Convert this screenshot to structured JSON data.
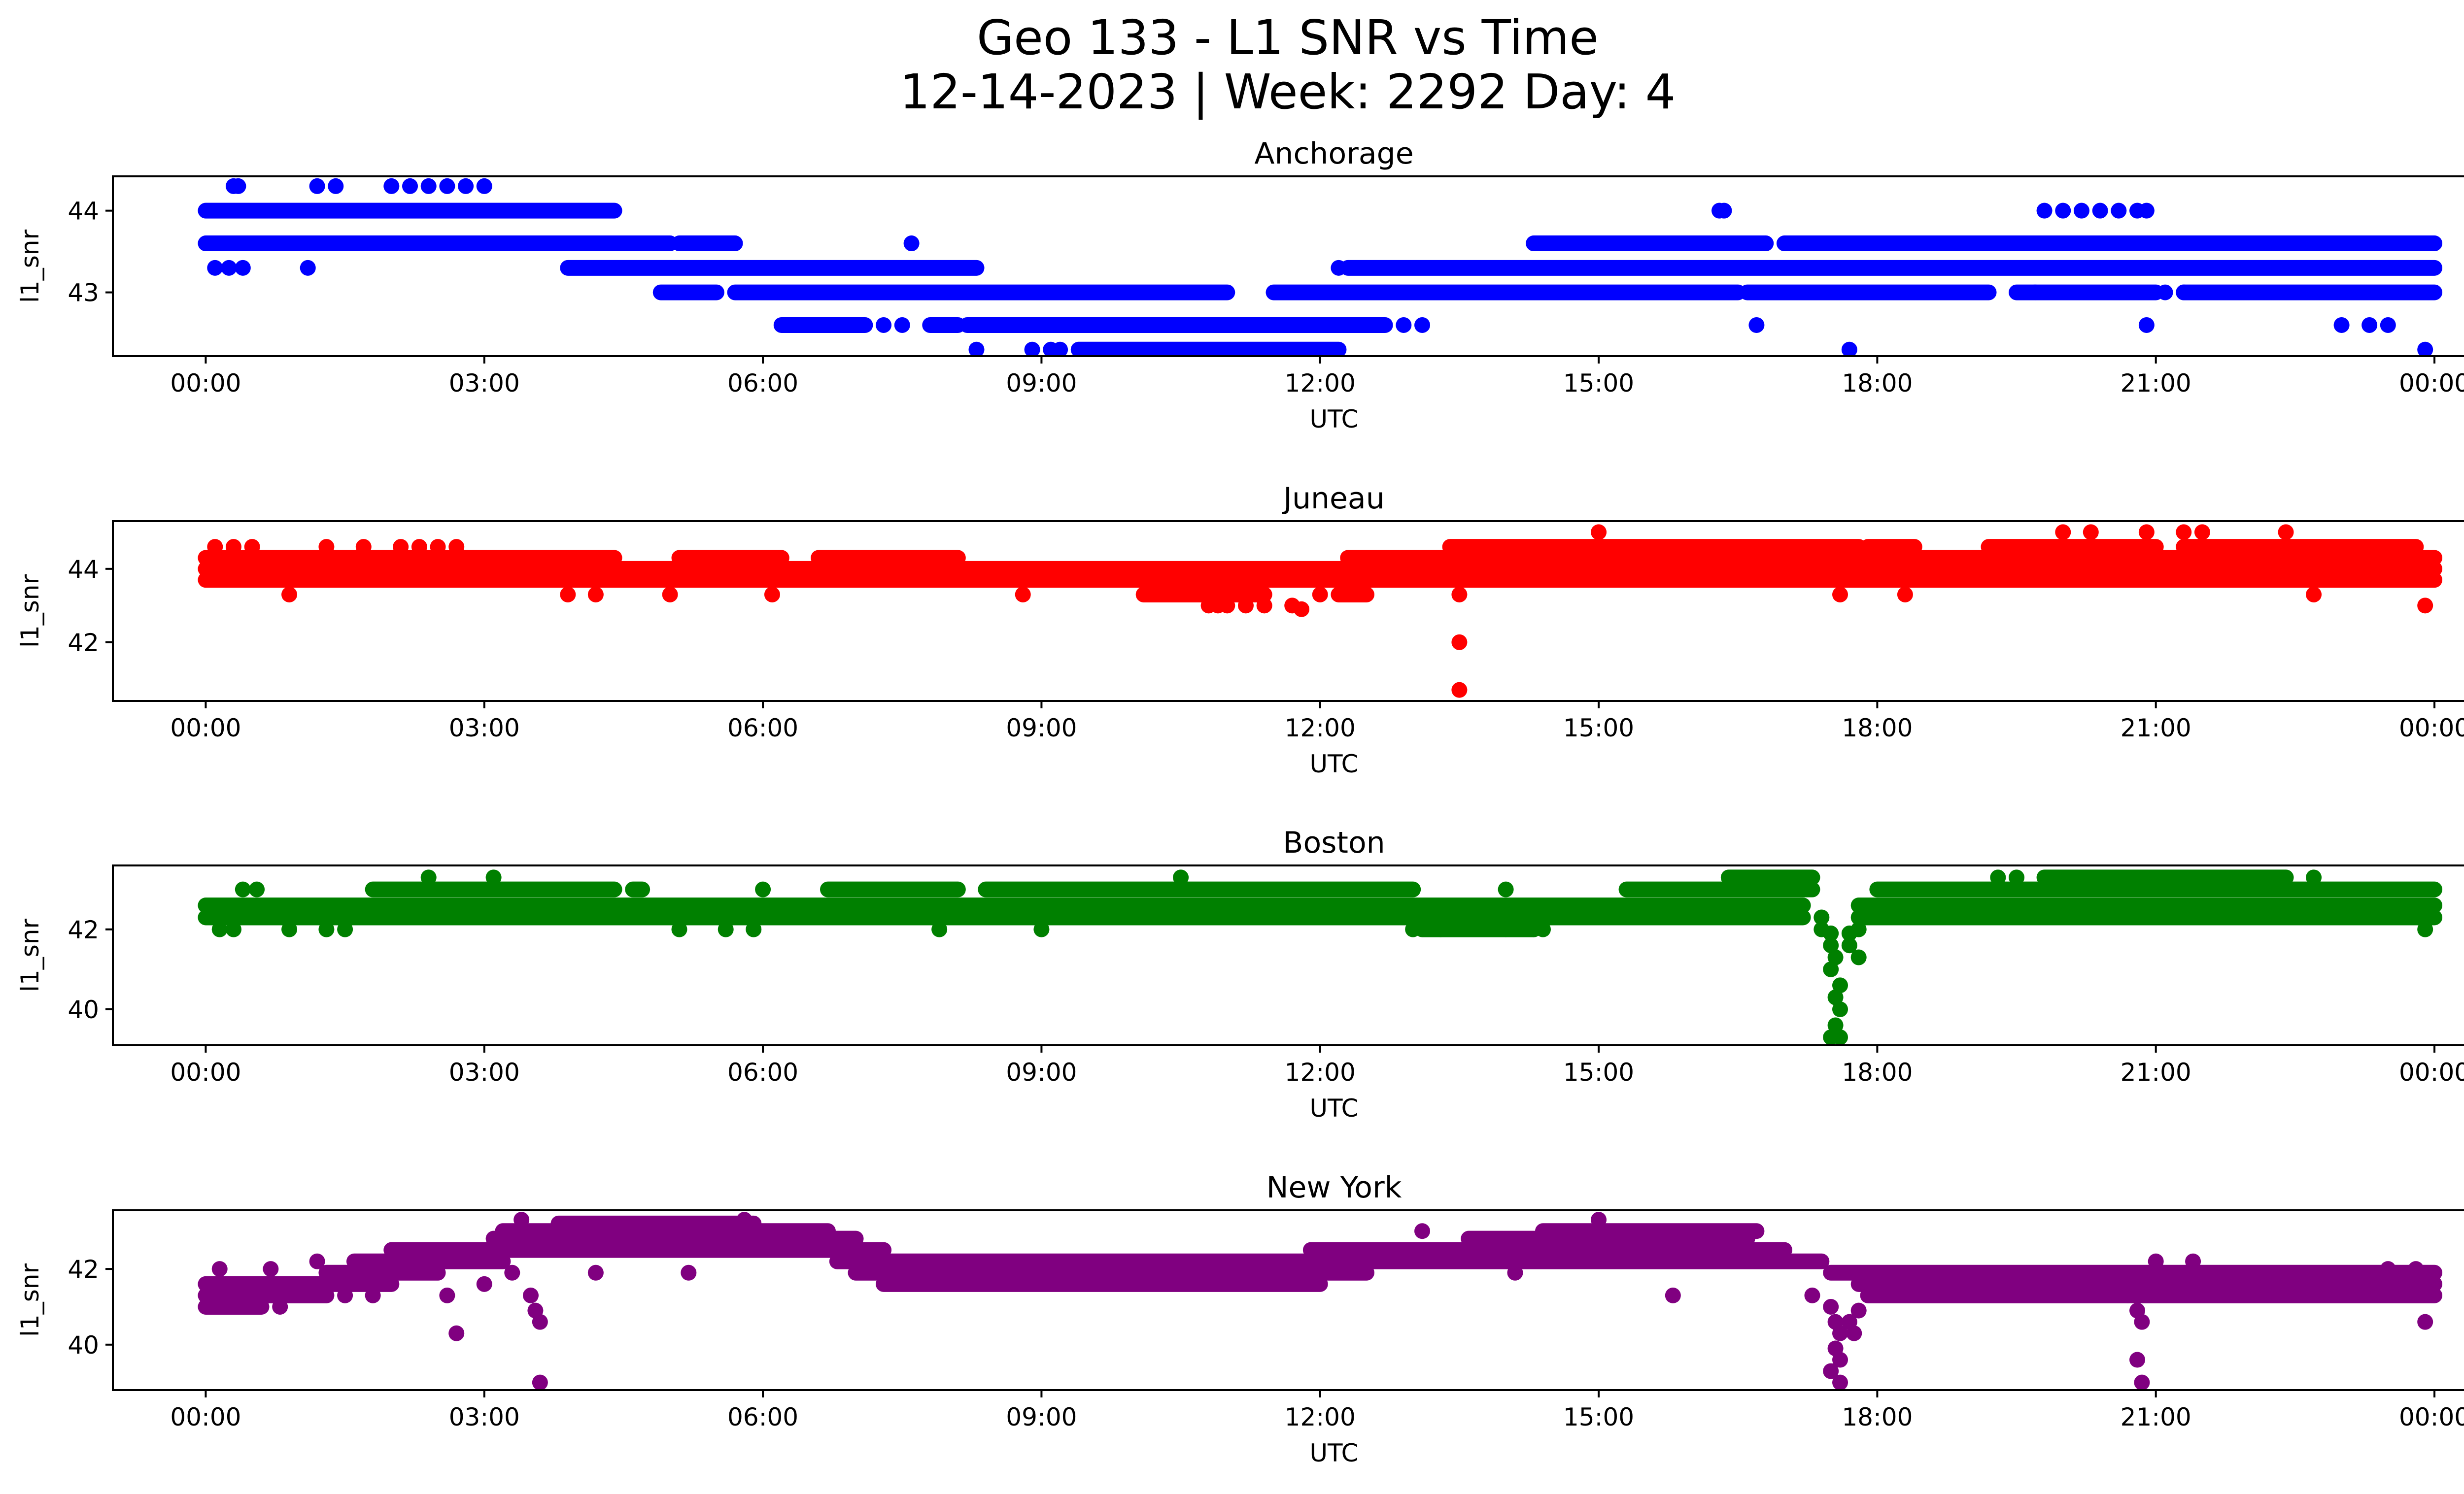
{
  "figure": {
    "title_line1": "Geo 133 - L1 SNR vs Time",
    "title_line2": "12-14-2023 | Week: 2292 Day: 4"
  },
  "chart_data": [
    {
      "type": "scatter",
      "title": "Anchorage",
      "xlabel": "UTC",
      "ylabel": "l1_snr",
      "color": "#0000ff",
      "xlim_hours": [
        -1.0,
        25.3
      ],
      "ylim": [
        42.22,
        44.42
      ],
      "x_ticks": [
        "00:00",
        "03:00",
        "06:00",
        "09:00",
        "12:00",
        "15:00",
        "18:00",
        "21:00",
        "00:00"
      ],
      "x_tick_hours": [
        0,
        3,
        6,
        9,
        12,
        15,
        18,
        21,
        24
      ],
      "y_ticks": [
        43,
        44
      ],
      "segments": [
        {
          "y": 44.0,
          "ranges": [
            [
              0.0,
              4.4
            ]
          ]
        },
        {
          "y": 43.6,
          "ranges": [
            [
              0.0,
              5.0
            ],
            [
              5.1,
              5.7
            ],
            [
              14.3,
              16.8
            ],
            [
              17.0,
              24.0
            ]
          ]
        },
        {
          "y": 43.3,
          "ranges": [
            [
              3.9,
              8.3
            ],
            [
              12.3,
              24.0
            ]
          ]
        },
        {
          "y": 43.0,
          "ranges": [
            [
              4.9,
              5.5
            ],
            [
              5.7,
              11.0
            ],
            [
              11.5,
              16.5
            ],
            [
              16.6,
              19.2
            ],
            [
              19.5,
              21.0
            ],
            [
              21.3,
              24.0
            ]
          ]
        },
        {
          "y": 42.6,
          "ranges": [
            [
              6.2,
              7.1
            ],
            [
              7.8,
              8.1
            ],
            [
              8.2,
              12.7
            ]
          ]
        },
        {
          "y": 42.3,
          "ranges": [
            [
              9.4,
              12.2
            ]
          ]
        }
      ],
      "points": [
        [
          0.1,
          43.3
        ],
        [
          0.25,
          43.3
        ],
        [
          0.4,
          43.3
        ],
        [
          1.1,
          43.3
        ],
        [
          0.3,
          44.3
        ],
        [
          0.35,
          44.3
        ],
        [
          1.2,
          44.3
        ],
        [
          1.4,
          44.3
        ],
        [
          2.0,
          44.3
        ],
        [
          2.2,
          44.3
        ],
        [
          2.4,
          44.3
        ],
        [
          2.6,
          44.3
        ],
        [
          2.8,
          44.3
        ],
        [
          3.0,
          44.3
        ],
        [
          7.6,
          43.6
        ],
        [
          8.3,
          42.3
        ],
        [
          8.9,
          42.3
        ],
        [
          9.1,
          42.3
        ],
        [
          9.2,
          42.3
        ],
        [
          6.6,
          42.6
        ],
        [
          7.3,
          42.6
        ],
        [
          7.5,
          42.6
        ],
        [
          12.9,
          42.6
        ],
        [
          13.1,
          42.6
        ],
        [
          12.2,
          43.3
        ],
        [
          16.3,
          44.0
        ],
        [
          16.35,
          44.0
        ],
        [
          16.7,
          42.6
        ],
        [
          17.7,
          42.3
        ],
        [
          19.8,
          44.0
        ],
        [
          20.0,
          44.0
        ],
        [
          20.2,
          44.0
        ],
        [
          20.4,
          44.0
        ],
        [
          20.6,
          44.0
        ],
        [
          20.8,
          44.0
        ],
        [
          20.9,
          44.0
        ],
        [
          20.9,
          42.6
        ],
        [
          23.0,
          42.6
        ],
        [
          23.3,
          42.6
        ],
        [
          23.5,
          42.6
        ],
        [
          23.9,
          42.3
        ],
        [
          19.7,
          43.0
        ],
        [
          21.1,
          43.0
        ],
        [
          21.3,
          43.0
        ],
        [
          22.9,
          43.6
        ],
        [
          23.2,
          43.6
        ],
        [
          23.5,
          43.6
        ]
      ]
    },
    {
      "type": "scatter",
      "title": "Juneau",
      "xlabel": "UTC",
      "ylabel": "l1_snr",
      "color": "#ff0000",
      "xlim_hours": [
        -1.0,
        25.3
      ],
      "ylim": [
        40.4,
        45.3
      ],
      "x_ticks": [
        "00:00",
        "03:00",
        "06:00",
        "09:00",
        "12:00",
        "15:00",
        "18:00",
        "21:00",
        "00:00"
      ],
      "x_tick_hours": [
        0,
        3,
        6,
        9,
        12,
        15,
        18,
        21,
        24
      ],
      "y_ticks": [
        42,
        44
      ],
      "segments": [
        {
          "y": 44.3,
          "ranges": [
            [
              0.0,
              4.4
            ],
            [
              5.1,
              6.2
            ],
            [
              6.6,
              8.1
            ],
            [
              12.3,
              24.0
            ]
          ]
        },
        {
          "y": 44.0,
          "ranges": [
            [
              0.0,
              24.0
            ]
          ]
        },
        {
          "y": 43.7,
          "ranges": [
            [
              0.0,
              24.0
            ]
          ]
        },
        {
          "y": 44.6,
          "ranges": [
            [
              13.4,
              17.8
            ],
            [
              17.9,
              18.4
            ],
            [
              19.2,
              21.0
            ],
            [
              21.3,
              23.8
            ]
          ]
        },
        {
          "y": 43.3,
          "ranges": [
            [
              10.1,
              11.4
            ],
            [
              12.2,
              12.5
            ]
          ]
        }
      ],
      "points": [
        [
          0.1,
          44.6
        ],
        [
          0.3,
          44.6
        ],
        [
          0.5,
          44.6
        ],
        [
          0.9,
          43.3
        ],
        [
          1.3,
          44.6
        ],
        [
          1.7,
          44.6
        ],
        [
          2.1,
          44.6
        ],
        [
          2.3,
          44.6
        ],
        [
          2.5,
          44.6
        ],
        [
          2.7,
          44.6
        ],
        [
          3.9,
          43.3
        ],
        [
          4.2,
          43.3
        ],
        [
          5.0,
          43.3
        ],
        [
          6.1,
          43.3
        ],
        [
          8.8,
          43.3
        ],
        [
          10.5,
          43.3
        ],
        [
          10.8,
          43.0
        ],
        [
          10.9,
          43.0
        ],
        [
          11.0,
          43.0
        ],
        [
          11.2,
          43.0
        ],
        [
          11.4,
          43.0
        ],
        [
          11.7,
          43.0
        ],
        [
          11.8,
          42.9
        ],
        [
          12.0,
          43.3
        ],
        [
          13.5,
          43.3
        ],
        [
          13.5,
          42.0
        ],
        [
          13.5,
          40.7
        ],
        [
          15.0,
          45.0
        ],
        [
          20.0,
          45.0
        ],
        [
          20.3,
          45.0
        ],
        [
          20.9,
          45.0
        ],
        [
          21.3,
          45.0
        ],
        [
          21.5,
          45.0
        ],
        [
          22.4,
          45.0
        ],
        [
          23.9,
          43.0
        ],
        [
          18.3,
          43.3
        ],
        [
          17.6,
          43.3
        ],
        [
          22.7,
          43.3
        ]
      ]
    },
    {
      "type": "scatter",
      "title": "Boston",
      "xlabel": "UTC",
      "ylabel": "l1_snr",
      "color": "#008000",
      "xlim_hours": [
        -1.0,
        25.3
      ],
      "ylim": [
        39.1,
        43.6
      ],
      "x_ticks": [
        "00:00",
        "03:00",
        "06:00",
        "09:00",
        "12:00",
        "15:00",
        "18:00",
        "21:00",
        "00:00"
      ],
      "x_tick_hours": [
        0,
        3,
        6,
        9,
        12,
        15,
        18,
        21,
        24
      ],
      "y_ticks": [
        40,
        42
      ],
      "segments": [
        {
          "y": 42.6,
          "ranges": [
            [
              0.0,
              17.2
            ],
            [
              17.8,
              24.0
            ]
          ]
        },
        {
          "y": 42.3,
          "ranges": [
            [
              0.0,
              17.2
            ],
            [
              17.8,
              24.0
            ]
          ]
        },
        {
          "y": 43.0,
          "ranges": [
            [
              1.8,
              4.4
            ],
            [
              4.6,
              4.7
            ],
            [
              6.7,
              8.1
            ],
            [
              8.4,
              13.0
            ],
            [
              15.3,
              17.3
            ],
            [
              18.0,
              24.0
            ]
          ]
        },
        {
          "y": 42.0,
          "ranges": [
            [
              13.1,
              14.3
            ]
          ]
        },
        {
          "y": 43.3,
          "ranges": [
            [
              16.4,
              17.3
            ],
            [
              19.8,
              22.4
            ]
          ]
        }
      ],
      "points": [
        [
          0.4,
          43.0
        ],
        [
          0.55,
          43.0
        ],
        [
          0.15,
          42.0
        ],
        [
          0.3,
          42.0
        ],
        [
          0.9,
          42.0
        ],
        [
          1.3,
          42.0
        ],
        [
          1.5,
          42.0
        ],
        [
          2.4,
          43.3
        ],
        [
          3.1,
          43.3
        ],
        [
          5.1,
          42.0
        ],
        [
          5.6,
          42.0
        ],
        [
          5.9,
          42.0
        ],
        [
          6.0,
          43.0
        ],
        [
          7.9,
          42.0
        ],
        [
          9.0,
          42.0
        ],
        [
          10.5,
          43.3
        ],
        [
          13.0,
          42.0
        ],
        [
          13.3,
          42.0
        ],
        [
          14.0,
          42.0
        ],
        [
          14.3,
          42.0
        ],
        [
          14.4,
          42.0
        ],
        [
          14.0,
          43.0
        ],
        [
          17.5,
          41.9
        ],
        [
          17.5,
          41.6
        ],
        [
          17.55,
          41.3
        ],
        [
          17.5,
          41.0
        ],
        [
          17.6,
          40.6
        ],
        [
          17.55,
          40.3
        ],
        [
          17.6,
          40.0
        ],
        [
          17.55,
          39.6
        ],
        [
          17.5,
          39.3
        ],
        [
          17.6,
          39.3
        ],
        [
          17.7,
          41.6
        ],
        [
          17.7,
          41.9
        ],
        [
          17.8,
          41.3
        ],
        [
          17.8,
          42.0
        ],
        [
          17.4,
          42.3
        ],
        [
          17.4,
          42.0
        ],
        [
          23.9,
          42.0
        ],
        [
          22.7,
          43.3
        ],
        [
          19.3,
          43.3
        ],
        [
          19.5,
          43.3
        ]
      ]
    },
    {
      "type": "scatter",
      "title": "New York",
      "xlabel": "UTC",
      "ylabel": "l1_snr",
      "color": "#800080",
      "xlim_hours": [
        -1.0,
        25.3
      ],
      "ylim": [
        38.8,
        43.55
      ],
      "x_ticks": [
        "00:00",
        "03:00",
        "06:00",
        "09:00",
        "12:00",
        "15:00",
        "18:00",
        "21:00",
        "00:00"
      ],
      "x_tick_hours": [
        0,
        3,
        6,
        9,
        12,
        15,
        18,
        21,
        24
      ],
      "y_ticks": [
        40,
        42
      ],
      "segments": [
        {
          "y": 41.0,
          "ranges": [
            [
              0.0,
              0.6
            ]
          ]
        },
        {
          "y": 41.3,
          "ranges": [
            [
              0.0,
              1.3
            ]
          ]
        },
        {
          "y": 41.6,
          "ranges": [
            [
              0.0,
              2.0
            ],
            [
              7.3,
              12.0
            ],
            [
              17.8,
              24.0
            ]
          ]
        },
        {
          "y": 41.9,
          "ranges": [
            [
              1.3,
              2.5
            ],
            [
              7.0,
              12.5
            ],
            [
              17.5,
              24.0
            ]
          ]
        },
        {
          "y": 42.2,
          "ranges": [
            [
              1.6,
              3.2
            ],
            [
              6.8,
              17.4
            ]
          ]
        },
        {
          "y": 42.5,
          "ranges": [
            [
              2.0,
              7.3
            ],
            [
              11.9,
              17.0
            ]
          ]
        },
        {
          "y": 42.8,
          "ranges": [
            [
              3.1,
              7.0
            ],
            [
              13.6,
              16.6
            ]
          ]
        },
        {
          "y": 43.0,
          "ranges": [
            [
              3.2,
              6.7
            ],
            [
              14.4,
              16.7
            ]
          ]
        },
        {
          "y": 43.2,
          "ranges": [
            [
              3.8,
              5.9
            ]
          ]
        },
        {
          "y": 41.3,
          "ranges": [
            [
              17.9,
              24.0
            ]
          ]
        }
      ],
      "points": [
        [
          0.15,
          42.0
        ],
        [
          0.7,
          42.0
        ],
        [
          0.8,
          41.0
        ],
        [
          1.2,
          42.2
        ],
        [
          1.5,
          41.3
        ],
        [
          1.8,
          41.3
        ],
        [
          2.6,
          41.3
        ],
        [
          2.7,
          40.3
        ],
        [
          3.0,
          41.6
        ],
        [
          3.3,
          41.9
        ],
        [
          3.5,
          41.3
        ],
        [
          3.6,
          40.6
        ],
        [
          3.55,
          40.9
        ],
        [
          3.6,
          39.0
        ],
        [
          3.4,
          43.3
        ],
        [
          5.8,
          43.3
        ],
        [
          4.2,
          41.9
        ],
        [
          5.2,
          41.9
        ],
        [
          13.1,
          43.0
        ],
        [
          14.1,
          41.9
        ],
        [
          15.0,
          43.3
        ],
        [
          15.8,
          41.3
        ],
        [
          17.5,
          41.0
        ],
        [
          17.55,
          40.6
        ],
        [
          17.6,
          40.3
        ],
        [
          17.55,
          39.9
        ],
        [
          17.6,
          39.6
        ],
        [
          17.5,
          39.3
        ],
        [
          17.6,
          39.0
        ],
        [
          17.7,
          40.6
        ],
        [
          17.75,
          40.3
        ],
        [
          17.8,
          40.9
        ],
        [
          17.3,
          41.3
        ],
        [
          20.8,
          40.9
        ],
        [
          20.85,
          40.6
        ],
        [
          20.8,
          39.6
        ],
        [
          20.85,
          39.0
        ],
        [
          20.7,
          41.3
        ],
        [
          23.9,
          40.6
        ],
        [
          23.5,
          42.0
        ],
        [
          23.8,
          42.0
        ],
        [
          21.0,
          42.2
        ],
        [
          21.4,
          42.2
        ]
      ]
    }
  ]
}
